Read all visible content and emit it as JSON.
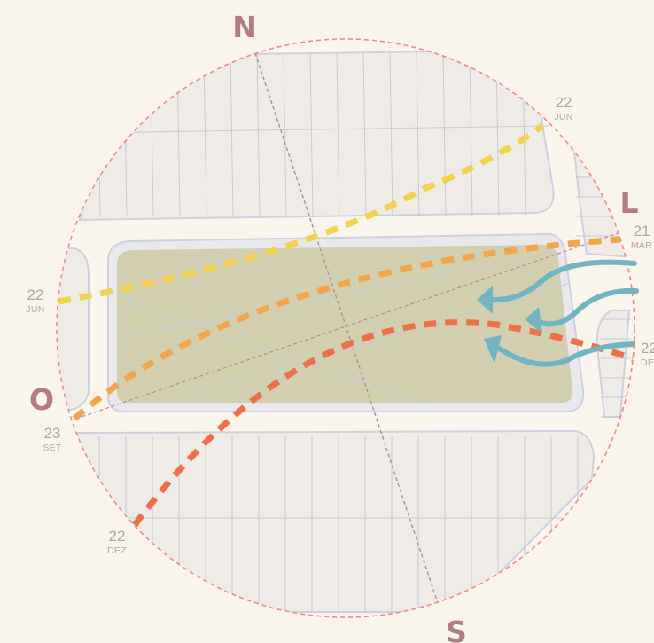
{
  "colors": {
    "background": "#faf5ec",
    "circle_border": "#ec8a8a",
    "cardinal": "#b37a87",
    "date_label": "#b0a79b",
    "lot": "#d1cfb0",
    "block": "#efece8",
    "block_stroke": "#cfd0de",
    "lot_lines": "#c6c9d9",
    "axis": "#b58a8f",
    "wind": "#72b5c2"
  },
  "compass": {
    "north": "N",
    "south": "S",
    "east": "L",
    "west": "O"
  },
  "sun_paths": [
    {
      "name": "jun",
      "color": "#f3d24f",
      "start": {
        "day": "22",
        "month": "JUN"
      },
      "end": {
        "day": "22",
        "month": "JUN"
      }
    },
    {
      "name": "equinox",
      "color": "#f2a54a",
      "start": {
        "day": "23",
        "month": "SET"
      },
      "end": {
        "day": "21",
        "month": "MAR"
      }
    },
    {
      "name": "dez",
      "color": "#ec7048",
      "start": {
        "day": "22",
        "month": "DEZ"
      },
      "end": {
        "day": "22",
        "month": "DEZ"
      }
    }
  ],
  "wind_arrows": [
    {
      "name": "wind-arrow-upper",
      "color": "#72b5c2"
    },
    {
      "name": "wind-arrow-middle",
      "color": "#72b5c2"
    },
    {
      "name": "wind-arrow-lower",
      "color": "#72b5c2"
    }
  ]
}
